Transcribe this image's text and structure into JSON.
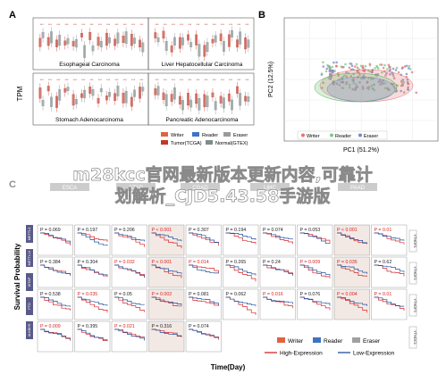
{
  "panels": {
    "a": {
      "letter": "A",
      "ylabel": "TPM",
      "boxes": [
        {
          "title": "Esophageal Carcinoma"
        },
        {
          "title": "Liver Hepatocellular Carcinoma"
        },
        {
          "title": "Stomach Adenocarcinoma"
        },
        {
          "title": "Pancreatic Adenocarcinoma"
        }
      ],
      "legend1": [
        {
          "label": "Writer",
          "color": "#e0633f"
        },
        {
          "label": "Reader",
          "color": "#3f73c2"
        },
        {
          "label": "Eraser",
          "color": "#9a9a9a"
        }
      ],
      "legend2": [
        {
          "label": "Tumor(TCGA)",
          "color": "#c0392b"
        },
        {
          "label": "Normal(GTEX)",
          "color": "#7f8c8d"
        }
      ]
    },
    "b": {
      "letter": "B",
      "xlabel": "PC1 (51.2%)",
      "ylabel": "PC2 (12.5%)",
      "legend": [
        {
          "label": "Writer",
          "color": "#e57373"
        },
        {
          "label": "Reader",
          "color": "#81c784"
        },
        {
          "label": "Eraser",
          "color": "#7986cb"
        }
      ]
    },
    "c": {
      "letter": "C",
      "ylabel": "Survival Probability",
      "xlabel": "Time(Day)",
      "columns": [
        "ESCA",
        "STAD",
        "COAD",
        "LIHC",
        "PAAD"
      ],
      "right_tags": [
        "YTHDF1",
        "YTHDF2",
        "YTHDF3",
        "YTHDC1"
      ],
      "left_tags": [
        "METTL3",
        "METTL14",
        "WTAP",
        "FTO",
        "ALKBH5"
      ],
      "pvalues": [
        [
          "P = 0.069",
          "P = 0.197",
          "P = 0.206",
          "P < 0.001",
          "P = 0.307",
          "P = 0.194",
          "P = 0.074",
          "P = 0.053",
          "P < 0.001",
          "P = 0.01"
        ],
        [
          "P = 0.384",
          "P = 0.304",
          "P = 0.032",
          "P < 0.001",
          "P = 0.014",
          "P = 0.265",
          "P = 0.24",
          "P = 0.009",
          "P = 0.035",
          "P = 0.62"
        ],
        [
          "P = 0.538",
          "P = 0.035",
          "P = 0.05",
          "P = 0.002",
          "P = 0.081",
          "P = 0.062",
          "P = 0.016",
          "P = 0.076",
          "P = 0.004",
          "P = 0.01"
        ],
        [
          "P = 0.009",
          "P = 0.395",
          "P = 0.021",
          "P = 0.316",
          "P = 0.074",
          "",
          "",
          "",
          "",
          ""
        ]
      ],
      "legend_types": [
        {
          "label": "Writer",
          "color": "#e0633f"
        },
        {
          "label": "Reader",
          "color": "#3f73c2"
        },
        {
          "label": "Eraser",
          "color": "#a0a0a0"
        }
      ],
      "legend_expr": [
        {
          "label": "High-Expression",
          "color": "#d62728"
        },
        {
          "label": "Low-Expression",
          "color": "#1f4e9c"
        }
      ]
    }
  },
  "watermark": {
    "line1": "m28kcc官网最新版本更新内容,可靠计",
    "line2": "划解析_CJD5.43.58手游版"
  },
  "chart_data": [
    {
      "type": "box",
      "title": "Esophageal Carcinoma",
      "ylabel": "TPM",
      "series": [
        {
          "name": "Tumor(TCGA)"
        },
        {
          "name": "Normal(GTEX)"
        }
      ]
    },
    {
      "type": "box",
      "title": "Liver Hepatocellular Carcinoma",
      "ylabel": "TPM"
    },
    {
      "type": "box",
      "title": "Stomach Adenocarcinoma",
      "ylabel": "TPM"
    },
    {
      "type": "box",
      "title": "Pancreatic Adenocarcinoma",
      "ylabel": "TPM"
    },
    {
      "type": "scatter",
      "xlabel": "PC1 (51.2%)",
      "ylabel": "PC2 (12.5%)",
      "series": [
        {
          "name": "Writer"
        },
        {
          "name": "Reader"
        },
        {
          "name": "Eraser"
        }
      ]
    },
    {
      "type": "line",
      "xlabel": "Time(Day)",
      "ylabel": "Survival Probability",
      "series": [
        {
          "name": "High-Expression"
        },
        {
          "name": "Low-Expression"
        }
      ]
    }
  ]
}
